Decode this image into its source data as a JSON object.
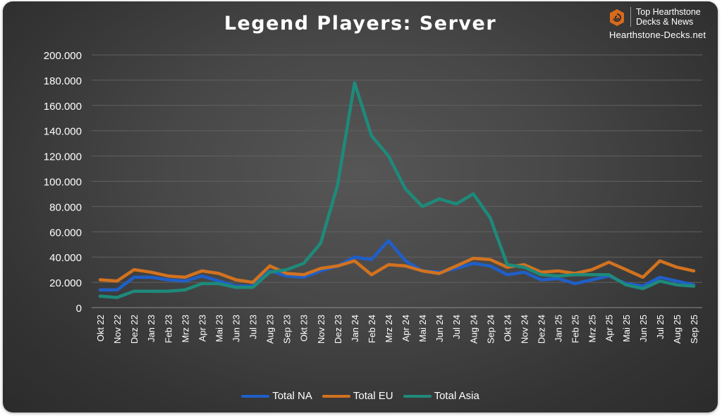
{
  "chart_data": {
    "type": "line",
    "title": "Legend Players: Server",
    "xlabel": "",
    "ylabel": "",
    "ylim": [
      0,
      200000
    ],
    "yticks": [
      "0",
      "20.000",
      "40.000",
      "60.000",
      "80.000",
      "100.000",
      "120.000",
      "140.000",
      "160.000",
      "180.000",
      "200.000"
    ],
    "grid": true,
    "legend_position": "bottom",
    "categories": [
      "Okt 22",
      "Nov 22",
      "Dez 22",
      "Jan 23",
      "Feb 23",
      "Mrz 23",
      "Apr 23",
      "Mai 23",
      "Jun 23",
      "Jul 23",
      "Aug 23",
      "Sep 23",
      "Okt 23",
      "Nov 23",
      "Dez 23",
      "Jan 24",
      "Feb 24",
      "Mrz 24",
      "Apr 24",
      "Mai 24",
      "Jun 24",
      "Jul 24",
      "Aug 24",
      "Sep 24",
      "Okt 24",
      "Nov 24",
      "Dez 24",
      "Jan 25",
      "Feb 25",
      "Mrz 25",
      "Apr 25",
      "Mai 25",
      "Jun 25",
      "Jul 25",
      "Aug 25",
      "Sep 25"
    ],
    "series": [
      {
        "name": "Total NA",
        "color": "#1f5fc8",
        "values": [
          14000,
          14000,
          24000,
          24000,
          22000,
          21000,
          25000,
          21000,
          17000,
          17000,
          29000,
          25000,
          24000,
          29000,
          33000,
          40000,
          38000,
          53000,
          37000,
          29000,
          28000,
          31000,
          35000,
          33000,
          26000,
          28000,
          22000,
          23000,
          19000,
          22000,
          25000,
          19000,
          17000,
          24000,
          21000,
          18000
        ]
      },
      {
        "name": "Total EU",
        "color": "#d2721f",
        "values": [
          22000,
          21000,
          30000,
          28000,
          25000,
          24000,
          29000,
          27000,
          22000,
          20000,
          33000,
          27000,
          26000,
          31000,
          33000,
          37000,
          26000,
          34000,
          33000,
          29000,
          27000,
          33000,
          39000,
          38000,
          32000,
          34000,
          28000,
          29000,
          27000,
          30000,
          36000,
          30000,
          24000,
          37000,
          32000,
          29000
        ]
      },
      {
        "name": "Total Asia",
        "color": "#1e8a7a",
        "values": [
          9000,
          8000,
          13000,
          13000,
          13000,
          14000,
          19000,
          19000,
          16000,
          16000,
          28000,
          30000,
          35000,
          51000,
          97000,
          178000,
          136000,
          120000,
          94000,
          80000,
          86000,
          82000,
          90000,
          71000,
          34000,
          32000,
          26000,
          25000,
          26000,
          26000,
          26000,
          18000,
          15000,
          21000,
          18000,
          17000
        ]
      }
    ]
  },
  "brand": {
    "line1": "Top Hearthstone",
    "line2": "Decks & News",
    "url": "Hearthstone-Decks.net",
    "logo_icon": "hexagon-spiral-icon",
    "logo_color": "#d86a1c"
  },
  "legend": [
    {
      "label": "Total NA",
      "color": "#1f5fc8"
    },
    {
      "label": "Total EU",
      "color": "#d2721f"
    },
    {
      "label": "Total Asia",
      "color": "#1e8a7a"
    }
  ]
}
